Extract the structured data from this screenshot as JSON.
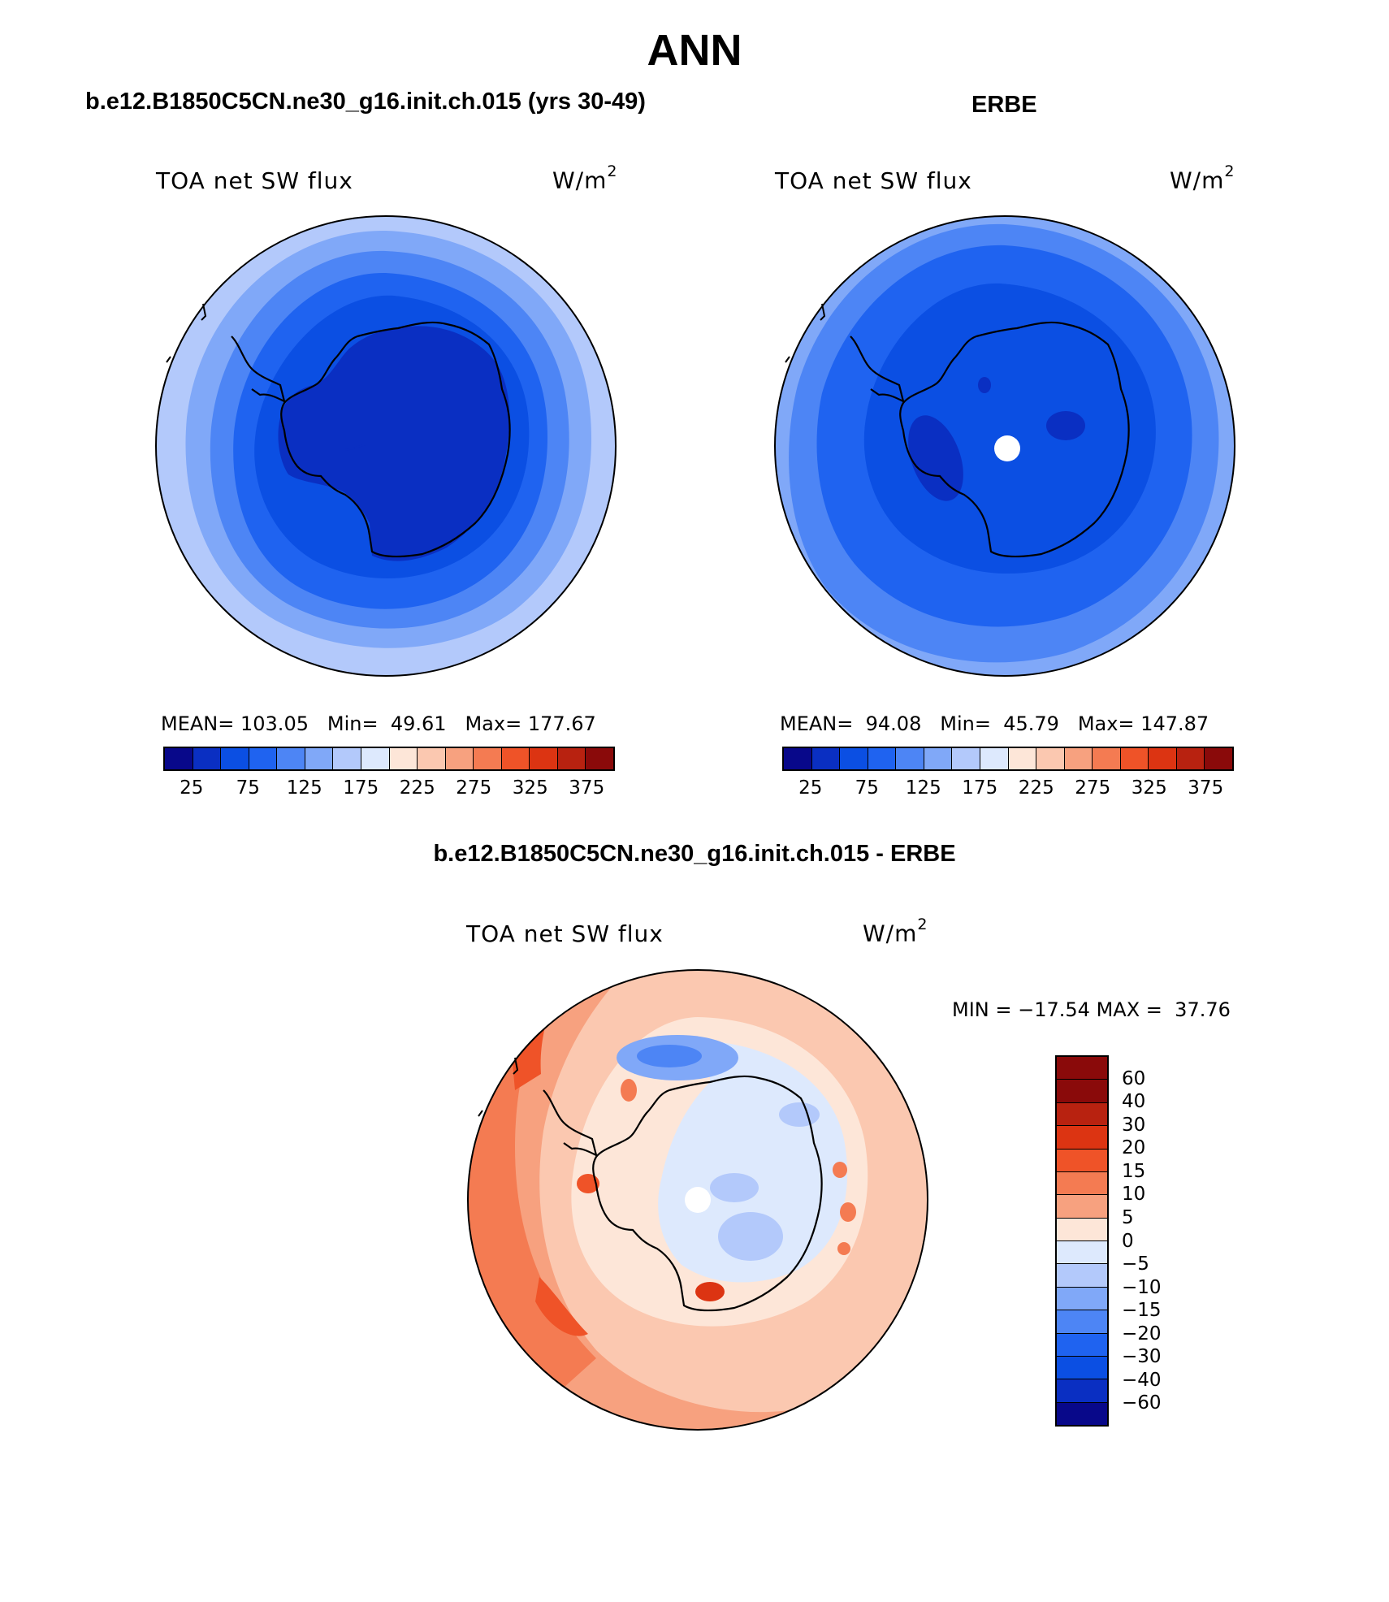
{
  "figure": {
    "title": "ANN",
    "colors": {
      "background": "#ffffff",
      "coastline": "#000000"
    }
  },
  "panels": {
    "model": {
      "title": "b.e12.B1850C5CN.ne30_g16.init.ch.015 (yrs 30-49)",
      "variable": "TOA net SW flux",
      "units_base": "W/m",
      "units_exp": "2",
      "stats": {
        "mean_label": "MEAN=",
        "mean": "103.05",
        "min_label": "Min=",
        "min": "49.61",
        "max_label": "Max=",
        "max": "177.67"
      }
    },
    "obs": {
      "title": "ERBE",
      "variable": "TOA net SW flux",
      "units_base": "W/m",
      "units_exp": "2",
      "stats": {
        "mean_label": "MEAN=",
        "mean": "94.08",
        "min_label": "Min=",
        "min": "45.79",
        "max_label": "Max=",
        "max": "147.87"
      }
    },
    "diff": {
      "title": "b.e12.B1850C5CN.ne30_g16.init.ch.015 - ERBE",
      "variable": "TOA net SW flux",
      "units_base": "W/m",
      "units_exp": "2",
      "stats": {
        "min_label": "MIN =",
        "min": "−17.54",
        "max_label": "MAX =",
        "max": "37.76"
      }
    }
  },
  "colorbars": {
    "abs": {
      "colors": [
        "#08088a",
        "#0a2fc2",
        "#0b4fe3",
        "#1f63f0",
        "#4d85f5",
        "#80a8f8",
        "#b3c9fb",
        "#dde9fd",
        "#fde6d8",
        "#fbc8b0",
        "#f7a17f",
        "#f47b52",
        "#ef5328",
        "#dc3412",
        "#b82210",
        "#8a0a0a"
      ],
      "tick_labels": [
        "25",
        "75",
        "125",
        "175",
        "225",
        "275",
        "325",
        "375"
      ]
    },
    "diff": {
      "colors": [
        "#8a0a0a",
        "#b82210",
        "#dc3412",
        "#ef5328",
        "#f47b52",
        "#f7a17f",
        "#fde6d8",
        "#dde9fd",
        "#b3c9fb",
        "#80a8f8",
        "#4d85f5",
        "#1f63f0",
        "#0b4fe3",
        "#0a2fc2",
        "#08088a"
      ],
      "tick_labels": [
        "60",
        "40",
        "30",
        "20",
        "15",
        "10",
        "5",
        "0",
        "−5",
        "−10",
        "−15",
        "−20",
        "−30",
        "−40",
        "−60"
      ]
    }
  }
}
